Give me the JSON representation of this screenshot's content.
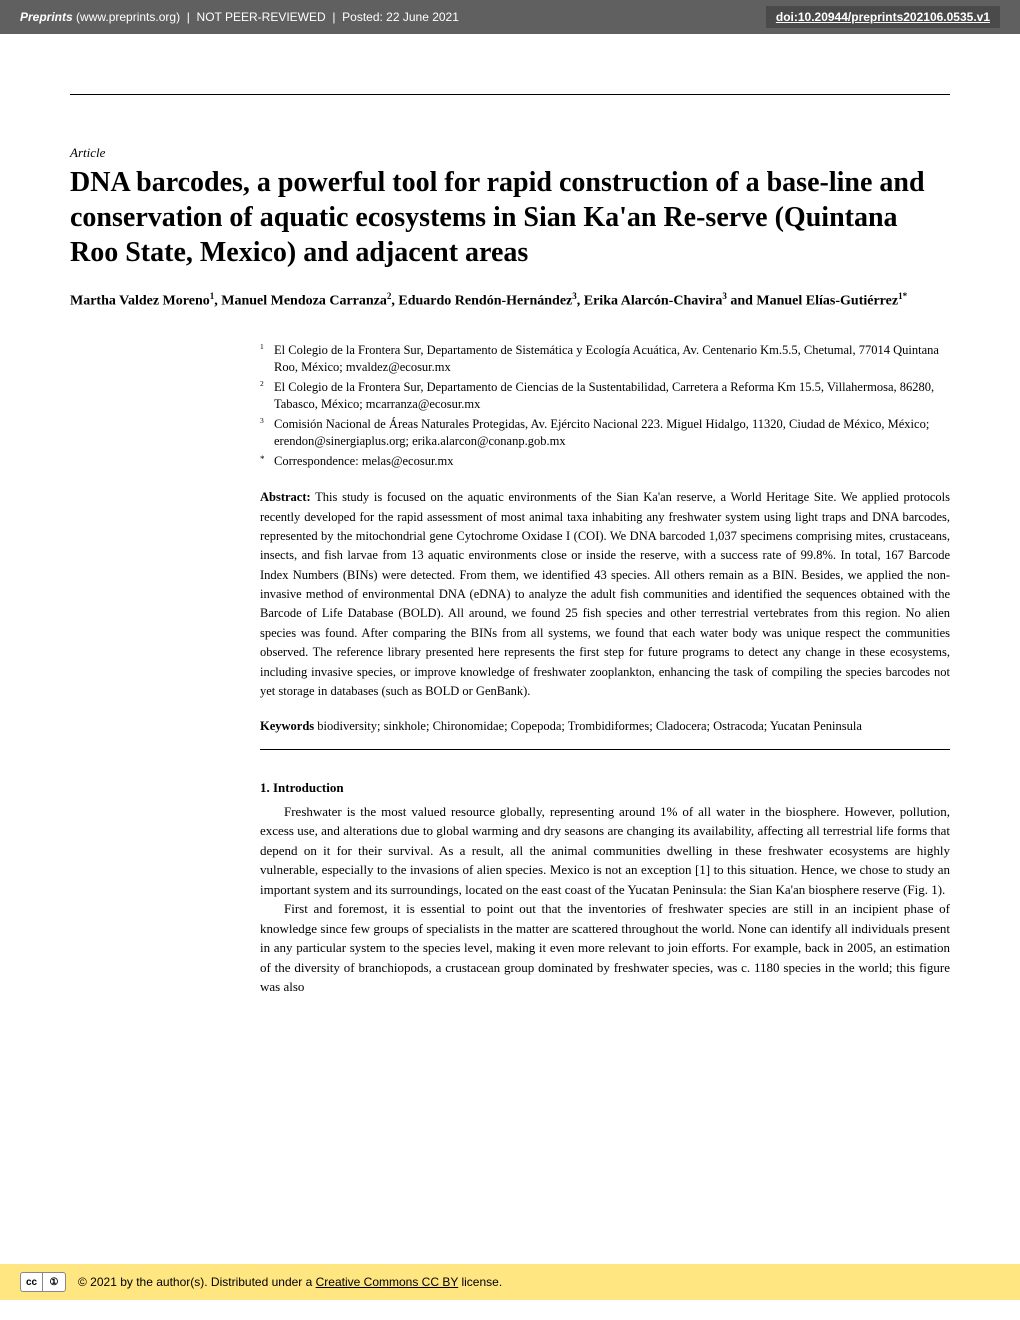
{
  "header": {
    "site": "Preprints",
    "url": "(www.preprints.org)",
    "status": "NOT PEER-REVIEWED",
    "posted": "Posted: 22 June 2021",
    "doi": "doi:10.20944/preprints202106.0535.v1"
  },
  "article": {
    "type": "Article",
    "title": "DNA barcodes, a powerful tool for rapid construction of a base-line and conservation of aquatic ecosystems in Sian Ka'an Re-serve (Quintana Roo State, Mexico) and adjacent areas",
    "authors_html": "Martha Valdez Moreno¹, Manuel Mendoza Carranza², Eduardo Rendón-Hernández³, Erika Alarcón-Chavira³ and Manuel Elías-Gutiérrez¹*"
  },
  "affiliations": [
    {
      "num": "1",
      "text": "El Colegio de la Frontera Sur, Departamento de Sistemática y Ecología Acuática, Av. Centenario Km.5.5, Chetumal, 77014 Quintana Roo, México; mvaldez@ecosur.mx"
    },
    {
      "num": "2",
      "text": "El Colegio de la Frontera Sur, Departamento de Ciencias de la Sustentabilidad, Carretera a Reforma Km 15.5, Villahermosa, 86280, Tabasco, México; mcarranza@ecosur.mx"
    },
    {
      "num": "3",
      "text": "Comisión Nacional de Áreas Naturales Protegidas, Av. Ejército Nacional 223. Miguel Hidalgo, 11320, Ciudad de México, México; erendon@sinergiaplus.org; erika.alarcon@conanp.gob.mx"
    },
    {
      "num": "*",
      "text": "Correspondence: melas@ecosur.mx"
    }
  ],
  "abstract": {
    "label": "Abstract:",
    "text": " This study is focused on the aquatic environments of the Sian Ka'an reserve, a World Heritage Site. We applied protocols recently developed for the rapid assessment of most animal taxa inhabiting any freshwater system using light traps and DNA barcodes, represented by the mitochondrial gene Cytochrome Oxidase I (COI). We DNA barcoded 1,037 specimens comprising mites, crustaceans, insects, and fish larvae from 13 aquatic environments close or inside the reserve, with a success rate of 99.8%. In total, 167 Barcode Index Numbers (BINs) were detected. From them, we identified 43 species. All others remain as a BIN. Besides, we applied the non-invasive method of environmental DNA (eDNA) to analyze the adult fish communities and identified the sequences obtained with the Barcode of Life Database (BOLD). All around, we found 25 fish species and other terrestrial vertebrates from this region. No alien species was found. After comparing the BINs from all systems, we found that each water body was unique respect the communities observed. The reference library presented here represents the first step for future programs to detect any change in these ecosystems, including invasive species, or improve knowledge of freshwater zooplankton, enhancing the task of compiling the species barcodes not yet storage in databases (such as BOLD or GenBank)."
  },
  "keywords": {
    "label": "Keywords",
    "text": " biodiversity; sinkhole; Chironomidae; Copepoda; Trombidiformes; Cladocera; Ostracoda; Yucatan Peninsula"
  },
  "section": {
    "heading": "1. Introduction",
    "para1": "Freshwater is the most valued resource globally, representing around 1% of all water in the biosphere. However, pollution, excess use, and alterations due to global warming and dry seasons are changing its availability, affecting all terrestrial life forms that depend on it for their survival. As a result, all the animal communities dwelling in these freshwater ecosystems are highly vulnerable, especially to the invasions of alien species. Mexico is not an exception [1] to this situation. Hence, we chose to study an important system and its surroundings, located on the east coast of the Yucatan Peninsula: the Sian Ka'an biosphere reserve (Fig. 1).",
    "para2": "First and foremost, it is essential to point out that the inventories of freshwater species are still in an incipient phase of knowledge since few groups of specialists in the matter are scattered throughout the world. None can identify all individuals present in any particular system to the species level, making it even more relevant to join efforts. For example, back in 2005, an estimation of the diversity of branchiopods, a crustacean group dominated by freshwater species, was c. 1180 species in the world; this figure was also"
  },
  "footer": {
    "cc1": "cc",
    "cc2": "①",
    "text_prefix": "© 2021 by the author(s). Distributed under a ",
    "license": "Creative Commons CC BY",
    "text_suffix": " license."
  },
  "colors": {
    "header_bg": "#606060",
    "doi_bg": "#4a4a4a",
    "footer_bg": "#ffe680",
    "text": "#000000"
  }
}
